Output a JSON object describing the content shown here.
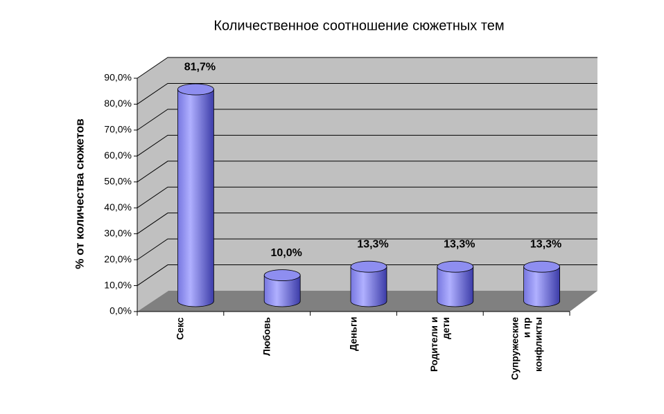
{
  "chart_data": {
    "type": "bar3d-cylinder",
    "title": "Количественное соотношение сюжетных тем",
    "y_label": "% от количества сюжетов",
    "categories": [
      "Секс",
      "Любовь",
      "Деньги",
      "Родители и дети",
      "Супружеские и пр конфликты"
    ],
    "values": [
      81.7,
      10.0,
      13.3,
      13.3,
      13.3
    ],
    "value_labels": [
      "81,7%",
      "10,0%",
      "13,3%",
      "13,3%",
      "13,3%"
    ],
    "color": "#9999ff",
    "ylim": [
      0,
      90
    ],
    "yticks": [
      {
        "value": 0,
        "label": "0,0%"
      },
      {
        "value": 10,
        "label": "10,0%"
      },
      {
        "value": 20,
        "label": "20,0%"
      },
      {
        "value": 30,
        "label": "30,0%"
      },
      {
        "value": 40,
        "label": "40,0%"
      },
      {
        "value": 50,
        "label": "50,0%"
      },
      {
        "value": 60,
        "label": "60,0%"
      },
      {
        "value": 70,
        "label": "70,0%"
      },
      {
        "value": 80,
        "label": "80,0%"
      },
      {
        "value": 90,
        "label": "90,0%"
      }
    ],
    "grid": true
  }
}
